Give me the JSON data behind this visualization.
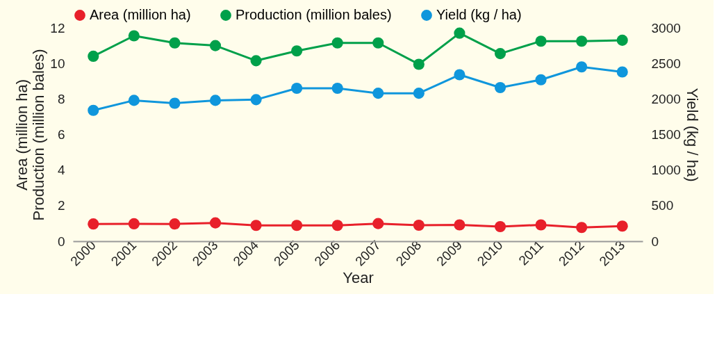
{
  "chart_data": {
    "type": "line",
    "xlabel": "Year",
    "ylabel": "Area (million ha)\nProduction (million bales)",
    "y2label": "Yield (kg / ha)",
    "categories": [
      "2000",
      "2001",
      "2002",
      "2003",
      "2004",
      "2005",
      "2006",
      "2007",
      "2008",
      "2009",
      "2010",
      "2011",
      "2012",
      "2013"
    ],
    "series": [
      {
        "name": "Area (million ha)",
        "color": "#e8202a",
        "values": [
          0.97,
          0.98,
          0.97,
          1.03,
          0.89,
          0.89,
          0.89,
          0.99,
          0.9,
          0.92,
          0.82,
          0.92,
          0.77,
          0.85
        ]
      },
      {
        "name": "Production (million bales)",
        "color": "#00a04a",
        "values": [
          10.4,
          11.55,
          11.15,
          11.0,
          10.15,
          10.7,
          11.15,
          11.15,
          9.95,
          11.7,
          10.55,
          11.25,
          11.25,
          11.3
        ]
      },
      {
        "name": "Yield (kg / ha)",
        "color": "#0f96dc",
        "axis": "y2",
        "values": [
          1840,
          1980,
          1940,
          1980,
          1990,
          2150,
          2150,
          2080,
          2080,
          2340,
          2160,
          2270,
          2450,
          2380
        ]
      }
    ],
    "ylim": [
      0,
      12
    ],
    "yticks": [
      0,
      2,
      4,
      6,
      8,
      10,
      12
    ],
    "y2lim": [
      0,
      3000
    ],
    "y2ticks": [
      0,
      500,
      1000,
      1500,
      2000,
      2500,
      3000
    ],
    "grid": false,
    "legend": "top",
    "marker": "circle",
    "line_style": "solid"
  }
}
